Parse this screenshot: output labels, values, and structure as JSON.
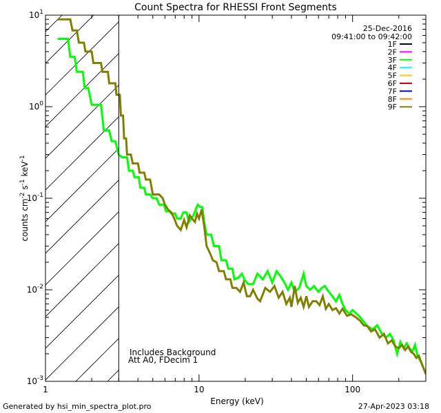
{
  "chart_data": {
    "type": "line",
    "title": "Count Spectra for RHESSI Front Segments",
    "xlabel": "Energy (keV)",
    "ylabel_parts": [
      "counts cm",
      "-2",
      " s",
      "-1",
      " keV",
      "-1"
    ],
    "xscale": "log",
    "yscale": "log",
    "xlim": [
      1,
      300
    ],
    "ylim": [
      0.001,
      10
    ],
    "x_tick_labels": [
      {
        "value": 1,
        "label": "1"
      },
      {
        "value": 10,
        "label": "10"
      },
      {
        "value": 100,
        "label": "100"
      }
    ],
    "y_tick_labels": [
      {
        "value": 10,
        "base": "10",
        "exp": "1"
      },
      {
        "value": 1,
        "base": "10",
        "exp": "0"
      },
      {
        "value": 0.1,
        "base": "10",
        "exp": "-1"
      },
      {
        "value": 0.01,
        "base": "10",
        "exp": "-2"
      },
      {
        "value": 0.001,
        "base": "10",
        "exp": "-3"
      }
    ],
    "date": "25-Dec-2016",
    "time_range": "09:41:00 to 09:42:00",
    "hatched_region": {
      "x_from": 1,
      "x_to": 3
    },
    "annotations": [
      "Includes Background",
      "Att A0, FDecim 1"
    ],
    "legend_position": "top-right",
    "legend": [
      {
        "name": "1F",
        "color": "#000000"
      },
      {
        "name": "2F",
        "color": "#ff00ff"
      },
      {
        "name": "3F",
        "color": "#00ff00"
      },
      {
        "name": "4F",
        "color": "#00ffff"
      },
      {
        "name": "5F",
        "color": "#ffcc00"
      },
      {
        "name": "6F",
        "color": "#cc0000"
      },
      {
        "name": "7F",
        "color": "#0000cc"
      },
      {
        "name": "8F",
        "color": "#ff8800"
      },
      {
        "name": "9F",
        "color": "#808000"
      }
    ],
    "series": [
      {
        "name": "3F",
        "color": "#00ff00",
        "points": [
          [
            1.2,
            5.5
          ],
          [
            1.4,
            5.5
          ],
          [
            1.45,
            3.5
          ],
          [
            1.55,
            3.5
          ],
          [
            1.6,
            2.4
          ],
          [
            1.75,
            2.4
          ],
          [
            1.8,
            1.6
          ],
          [
            1.9,
            1.6
          ],
          [
            2.0,
            1.05
          ],
          [
            2.3,
            1.05
          ],
          [
            2.4,
            0.55
          ],
          [
            2.6,
            0.55
          ],
          [
            2.7,
            0.42
          ],
          [
            2.85,
            0.42
          ],
          [
            3.0,
            0.3
          ],
          [
            3.15,
            0.28
          ],
          [
            3.4,
            0.28
          ],
          [
            3.5,
            0.2
          ],
          [
            3.7,
            0.2
          ],
          [
            3.8,
            0.17
          ],
          [
            4.05,
            0.17
          ],
          [
            4.15,
            0.13
          ],
          [
            4.4,
            0.13
          ],
          [
            4.5,
            0.11
          ],
          [
            4.8,
            0.11
          ],
          [
            5.0,
            0.1
          ],
          [
            5.3,
            0.1
          ],
          [
            5.5,
            0.085
          ],
          [
            5.9,
            0.085
          ],
          [
            6.1,
            0.072
          ],
          [
            6.4,
            0.072
          ],
          [
            6.6,
            0.068
          ],
          [
            7.0,
            0.068
          ],
          [
            7.2,
            0.06
          ],
          [
            7.6,
            0.06
          ],
          [
            7.9,
            0.07
          ],
          [
            8.3,
            0.07
          ],
          [
            8.6,
            0.055
          ],
          [
            8.9,
            0.06
          ],
          [
            9.2,
            0.065
          ],
          [
            9.5,
            0.075
          ],
          [
            9.8,
            0.085
          ],
          [
            10.2,
            0.08
          ],
          [
            10.5,
            0.08
          ],
          [
            10.8,
            0.055
          ],
          [
            11.2,
            0.04
          ],
          [
            12.0,
            0.04
          ],
          [
            12.5,
            0.03
          ],
          [
            13.5,
            0.03
          ],
          [
            14.0,
            0.021
          ],
          [
            15.0,
            0.021
          ],
          [
            15.5,
            0.017
          ],
          [
            16.5,
            0.017
          ],
          [
            17.0,
            0.013
          ],
          [
            18.0,
            0.0135
          ],
          [
            19.0,
            0.015
          ],
          [
            20.0,
            0.0125
          ],
          [
            21.0,
            0.0115
          ],
          [
            22.5,
            0.0115
          ],
          [
            24.0,
            0.015
          ],
          [
            26.0,
            0.013
          ],
          [
            28.0,
            0.016
          ],
          [
            30.0,
            0.012
          ],
          [
            32.0,
            0.016
          ],
          [
            34.0,
            0.014
          ],
          [
            36.0,
            0.012
          ],
          [
            38.0,
            0.01
          ],
          [
            40.0,
            0.012
          ],
          [
            42.0,
            0.0095
          ],
          [
            45.0,
            0.0105
          ],
          [
            48.0,
            0.015
          ],
          [
            50.0,
            0.011
          ],
          [
            53.0,
            0.01
          ],
          [
            56.0,
            0.011
          ],
          [
            60.0,
            0.0095
          ],
          [
            63.0,
            0.0105
          ],
          [
            66.0,
            0.011
          ],
          [
            70.0,
            0.0095
          ],
          [
            74.0,
            0.0085
          ],
          [
            78.0,
            0.0075
          ],
          [
            82.0,
            0.0088
          ],
          [
            86.0,
            0.007
          ],
          [
            90.0,
            0.006
          ],
          [
            95.0,
            0.0055
          ],
          [
            100.0,
            0.006
          ],
          [
            110.0,
            0.0052
          ],
          [
            118.0,
            0.0045
          ],
          [
            125.0,
            0.004
          ],
          [
            135.0,
            0.0037
          ],
          [
            145.0,
            0.0041
          ],
          [
            155.0,
            0.0033
          ],
          [
            165.0,
            0.003
          ],
          [
            175.0,
            0.0033
          ],
          [
            185.0,
            0.0028
          ],
          [
            195.0,
            0.002
          ],
          [
            205.0,
            0.0027
          ],
          [
            215.0,
            0.0023
          ],
          [
            225.0,
            0.0026
          ],
          [
            235.0,
            0.0023
          ],
          [
            245.0,
            0.0021
          ],
          [
            255.0,
            0.0025
          ],
          [
            265.0,
            0.0019
          ],
          [
            280.0,
            0.0016
          ],
          [
            295.0,
            0.0013
          ]
        ]
      },
      {
        "name": "9F",
        "color": "#808000",
        "points": [
          [
            1.2,
            9.0
          ],
          [
            1.45,
            9.0
          ],
          [
            1.5,
            6.8
          ],
          [
            1.6,
            6.8
          ],
          [
            1.65,
            5.0
          ],
          [
            1.78,
            5.0
          ],
          [
            1.82,
            4.0
          ],
          [
            2.0,
            4.0
          ],
          [
            2.05,
            3.0
          ],
          [
            2.3,
            3.0
          ],
          [
            2.35,
            2.4
          ],
          [
            2.55,
            2.4
          ],
          [
            2.6,
            1.8
          ],
          [
            2.85,
            1.8
          ],
          [
            2.9,
            1.35
          ],
          [
            3.05,
            1.35
          ],
          [
            3.1,
            0.8
          ],
          [
            3.2,
            0.8
          ],
          [
            3.25,
            0.45
          ],
          [
            3.35,
            0.45
          ],
          [
            3.4,
            0.3
          ],
          [
            3.6,
            0.3
          ],
          [
            3.7,
            0.24
          ],
          [
            4.0,
            0.24
          ],
          [
            4.1,
            0.19
          ],
          [
            4.4,
            0.19
          ],
          [
            4.5,
            0.16
          ],
          [
            4.8,
            0.16
          ],
          [
            5.0,
            0.11
          ],
          [
            5.5,
            0.11
          ],
          [
            5.8,
            0.1
          ],
          [
            6.0,
            0.085
          ],
          [
            6.3,
            0.075
          ],
          [
            6.6,
            0.07
          ],
          [
            6.9,
            0.06
          ],
          [
            7.2,
            0.05
          ],
          [
            7.6,
            0.045
          ],
          [
            8.0,
            0.058
          ],
          [
            8.3,
            0.048
          ],
          [
            8.7,
            0.065
          ],
          [
            9.0,
            0.06
          ],
          [
            9.4,
            0.055
          ],
          [
            9.7,
            0.068
          ],
          [
            10.0,
            0.06
          ],
          [
            10.4,
            0.075
          ],
          [
            10.8,
            0.05
          ],
          [
            11.2,
            0.03
          ],
          [
            11.8,
            0.025
          ],
          [
            12.3,
            0.021
          ],
          [
            13.0,
            0.02
          ],
          [
            13.5,
            0.016
          ],
          [
            14.5,
            0.016
          ],
          [
            15.0,
            0.013
          ],
          [
            16.0,
            0.013
          ],
          [
            16.5,
            0.0105
          ],
          [
            17.5,
            0.0105
          ],
          [
            18.5,
            0.0095
          ],
          [
            19.5,
            0.012
          ],
          [
            20.5,
            0.0085
          ],
          [
            21.5,
            0.0085
          ],
          [
            22.5,
            0.01
          ],
          [
            24.0,
            0.008
          ],
          [
            25.0,
            0.0075
          ],
          [
            27.0,
            0.0105
          ],
          [
            29.0,
            0.0095
          ],
          [
            31.0,
            0.011
          ],
          [
            33.0,
            0.0082
          ],
          [
            35.0,
            0.0095
          ],
          [
            37.0,
            0.007
          ],
          [
            39.0,
            0.0082
          ],
          [
            40.0,
            0.0065
          ],
          [
            42.0,
            0.011
          ],
          [
            44.0,
            0.0072
          ],
          [
            46.0,
            0.0082
          ],
          [
            48.0,
            0.0065
          ],
          [
            50.0,
            0.0085
          ],
          [
            52.0,
            0.0065
          ],
          [
            55.0,
            0.0075
          ],
          [
            58.0,
            0.0075
          ],
          [
            61.0,
            0.0068
          ],
          [
            64.0,
            0.0085
          ],
          [
            67.0,
            0.0062
          ],
          [
            70.0,
            0.007
          ],
          [
            74.0,
            0.006
          ],
          [
            78.0,
            0.0063
          ],
          [
            82.0,
            0.0055
          ],
          [
            86.0,
            0.0062
          ],
          [
            92.0,
            0.0052
          ],
          [
            98.0,
            0.0054
          ],
          [
            105.0,
            0.005
          ],
          [
            112.0,
            0.0046
          ],
          [
            118.0,
            0.0041
          ],
          [
            125.0,
            0.004
          ],
          [
            132.0,
            0.0035
          ],
          [
            140.0,
            0.0037
          ],
          [
            150.0,
            0.003
          ],
          [
            160.0,
            0.0033
          ],
          [
            170.0,
            0.0026
          ],
          [
            180.0,
            0.0028
          ],
          [
            190.0,
            0.0024
          ],
          [
            200.0,
            0.0023
          ],
          [
            210.0,
            0.0025
          ],
          [
            220.0,
            0.0022
          ],
          [
            230.0,
            0.0024
          ],
          [
            240.0,
            0.0021
          ],
          [
            250.0,
            0.002
          ],
          [
            260.0,
            0.0018
          ],
          [
            270.0,
            0.0019
          ],
          [
            285.0,
            0.0015
          ],
          [
            300.0,
            0.0012
          ]
        ]
      }
    ]
  },
  "footer": {
    "generated_by": "Generated by hsi_min_spectra_plot.pro",
    "timestamp": "27-Apr-2023 03:18"
  }
}
